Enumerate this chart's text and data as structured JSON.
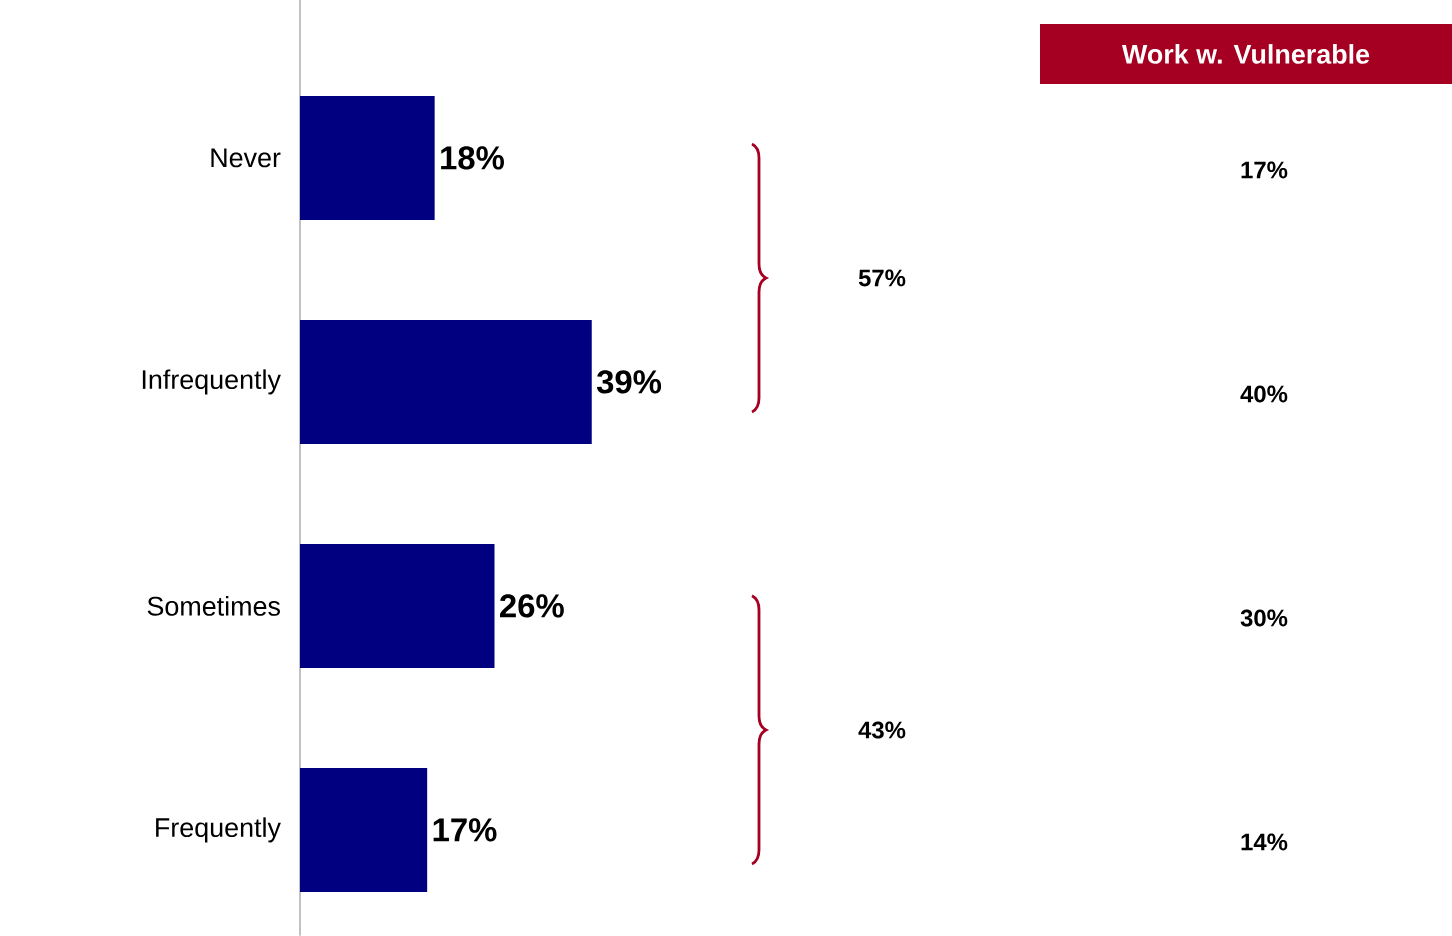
{
  "chart_data": {
    "type": "bar",
    "orientation": "horizontal",
    "categories": [
      "Never",
      "Infrequently",
      "Sometimes",
      "Frequently"
    ],
    "values": [
      18,
      39,
      26,
      17
    ],
    "value_labels": [
      "18%",
      "39%",
      "26%",
      "17%"
    ],
    "color": "#000080",
    "xlim": [
      0,
      154
    ],
    "tick_labels": "y",
    "annotations": [
      "Work w. Vulnerable",
      "17%",
      "40%",
      "30%",
      "14%",
      "57%",
      "43%"
    ]
  }
}
